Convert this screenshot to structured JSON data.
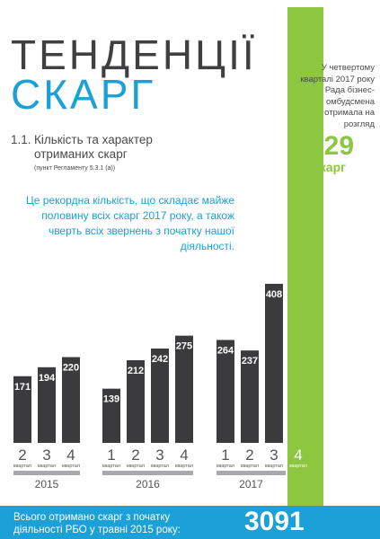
{
  "header": {
    "title_line1": "ТЕНДЕНЦІЇ",
    "title_line2": "СКАРГ"
  },
  "side": {
    "note": "У четвертому кварталі 2017 року Рада бізнес-омбудсмена отримала на розгляд",
    "count": "729",
    "count_unit": "скарг"
  },
  "section": {
    "number": "1.1.",
    "title": "Кількість та характер отриманих скарг",
    "reference": "(пункт Регламенту 5.3.1 (а))"
  },
  "highlight": "Це рекордна кількість, що складає майже половину всіх скарг 2017 року, а також чверть всіх звернень з початку нашої діяльності.",
  "footer": {
    "text": "Всього отримано скарг з початку діяльності РБО у травні 2015 року:",
    "total": "3091"
  },
  "colors": {
    "bar": "#3b3b3d",
    "blue": "#1ba0d7",
    "green": "#8dc63f",
    "group_line": "#a7a9ac"
  },
  "chart_data": {
    "type": "bar",
    "quarter_word": "квартал",
    "groups": [
      {
        "year": "2015",
        "bars": [
          {
            "q": "2",
            "value": 171
          },
          {
            "q": "3",
            "value": 194
          },
          {
            "q": "4",
            "value": 220
          }
        ]
      },
      {
        "year": "2016",
        "bars": [
          {
            "q": "1",
            "value": 139
          },
          {
            "q": "2",
            "value": 212
          },
          {
            "q": "3",
            "value": 242
          },
          {
            "q": "4",
            "value": 275
          }
        ]
      },
      {
        "year": "2017",
        "bars": [
          {
            "q": "1",
            "value": 264
          },
          {
            "q": "2",
            "value": 237
          },
          {
            "q": "3",
            "value": 408
          },
          {
            "q": "4",
            "value": 729
          }
        ]
      }
    ]
  }
}
